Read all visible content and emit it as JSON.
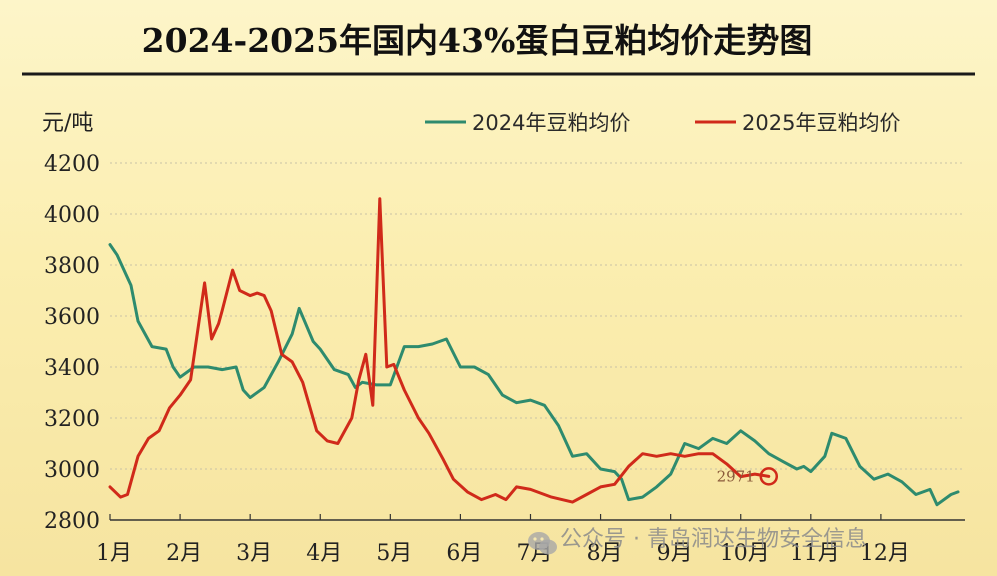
{
  "chart_data": {
    "type": "line",
    "title": "2024-2025年国内43%蛋白豆粕均价走势图",
    "ylabel": "元/吨",
    "ylim": [
      2800,
      4200
    ],
    "yticks": [
      "4200",
      "4000",
      "3800",
      "3600",
      "3400",
      "3200",
      "3000",
      "2800"
    ],
    "xlim": [
      1,
      13.2
    ],
    "xticks": [
      "1月",
      "2月",
      "3月",
      "4月",
      "5月",
      "6月",
      "7月",
      "8月",
      "9月",
      "10月",
      "11月",
      "12月"
    ],
    "legend_position": "top-right",
    "series": [
      {
        "name": "2024年豆粕均价",
        "color": "#2e8b6e",
        "x": [
          1.0,
          1.1,
          1.3,
          1.4,
          1.6,
          1.8,
          1.9,
          2.0,
          2.2,
          2.4,
          2.6,
          2.8,
          2.9,
          3.0,
          3.2,
          3.4,
          3.6,
          3.7,
          3.9,
          4.0,
          4.2,
          4.4,
          4.5,
          4.6,
          4.8,
          5.0,
          5.2,
          5.4,
          5.6,
          5.8,
          6.0,
          6.2,
          6.4,
          6.6,
          6.8,
          7.0,
          7.2,
          7.4,
          7.6,
          7.8,
          8.0,
          8.2,
          8.3,
          8.4,
          8.6,
          8.8,
          9.0,
          9.2,
          9.4,
          9.6,
          9.8,
          10.0,
          10.2,
          10.4,
          10.6,
          10.8,
          10.9,
          11.0,
          11.2,
          11.3,
          11.5,
          11.7,
          11.9,
          12.1,
          12.3,
          12.5,
          12.7,
          12.8,
          13.0,
          13.1
        ],
        "y": [
          3880,
          3840,
          3720,
          3580,
          3480,
          3470,
          3400,
          3360,
          3400,
          3400,
          3390,
          3400,
          3310,
          3280,
          3320,
          3420,
          3530,
          3630,
          3500,
          3470,
          3390,
          3370,
          3320,
          3340,
          3330,
          3330,
          3480,
          3480,
          3490,
          3510,
          3400,
          3400,
          3370,
          3290,
          3260,
          3270,
          3250,
          3170,
          3050,
          3060,
          3000,
          2990,
          2960,
          2880,
          2890,
          2930,
          2980,
          3100,
          3080,
          3120,
          3100,
          3150,
          3110,
          3060,
          3030,
          3000,
          3010,
          2990,
          3050,
          3140,
          3120,
          3010,
          2960,
          2980,
          2950,
          2900,
          2920,
          2860,
          2900,
          2910
        ]
      },
      {
        "name": "2025年豆粕均价",
        "color": "#d02a1a",
        "x": [
          1.0,
          1.15,
          1.25,
          1.4,
          1.55,
          1.7,
          1.85,
          2.0,
          2.15,
          2.35,
          2.45,
          2.55,
          2.6,
          2.75,
          2.85,
          3.0,
          3.1,
          3.2,
          3.3,
          3.45,
          3.6,
          3.75,
          3.95,
          4.1,
          4.25,
          4.45,
          4.55,
          4.65,
          4.75,
          4.85,
          4.95,
          5.05,
          5.2,
          5.4,
          5.55,
          5.75,
          5.9,
          6.1,
          6.3,
          6.5,
          6.65,
          6.8,
          7.0,
          7.3,
          7.6,
          7.8,
          8.0,
          8.2,
          8.4,
          8.6,
          8.8,
          9.0,
          9.2,
          9.4,
          9.6,
          9.8,
          10.0,
          10.2,
          10.4
        ],
        "y": [
          2930,
          2890,
          2900,
          3050,
          3120,
          3150,
          3240,
          3290,
          3350,
          3730,
          3510,
          3570,
          3620,
          3780,
          3700,
          3680,
          3690,
          3680,
          3620,
          3450,
          3420,
          3340,
          3150,
          3110,
          3100,
          3200,
          3350,
          3450,
          3250,
          4060,
          3400,
          3410,
          3310,
          3200,
          3140,
          3040,
          2960,
          2910,
          2880,
          2900,
          2880,
          2930,
          2920,
          2890,
          2870,
          2900,
          2930,
          2940,
          3010,
          3060,
          3050,
          3060,
          3050,
          3060,
          3060,
          3020,
          2970,
          2980,
          2971
        ]
      }
    ],
    "annotations": [
      {
        "text": "2971",
        "x": 10.4,
        "y": 2971
      }
    ]
  },
  "watermark": {
    "icon": "wechat-icon",
    "text": "公众号 · 青岛润达生物安全信息"
  }
}
